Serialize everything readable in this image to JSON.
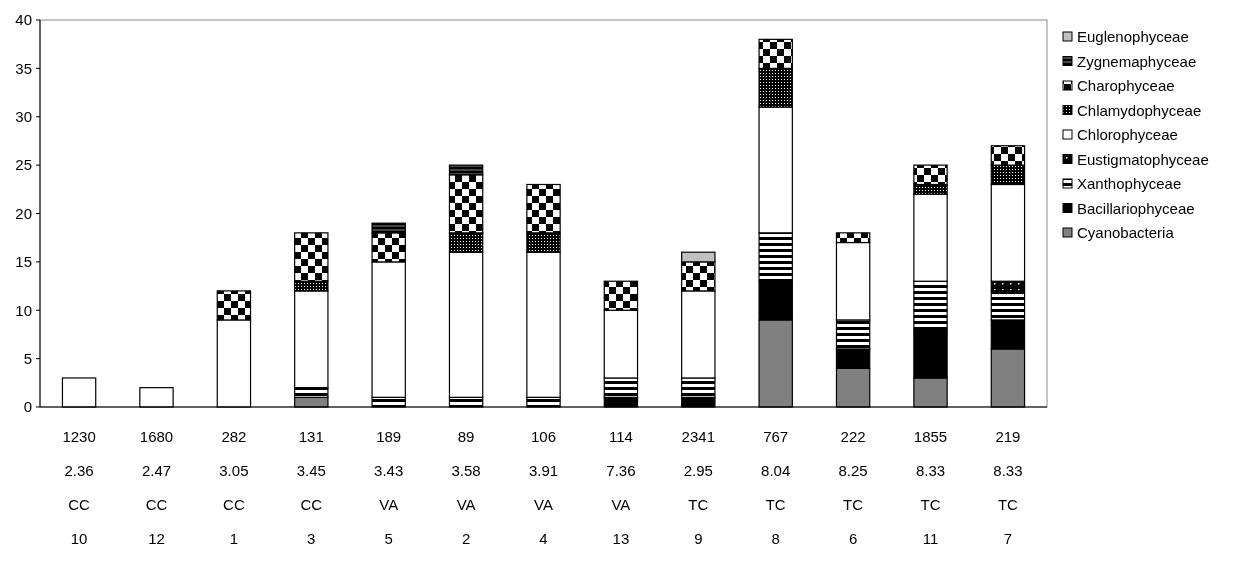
{
  "chart_data": {
    "type": "bar",
    "stacked": true,
    "legend": "right",
    "grid": false,
    "categories": [
      "1230\n2.36\nCC\n10",
      "1680\n2.47\nCC\n12",
      "282\n3.05\nCC\n1",
      "131\n3.45\nCC\n3",
      "189\n3.43\nVA\n5",
      "89\n3.58\nVA\n2",
      "106\n3.91\nVA\n4",
      "114\n7.36\nVA\n13",
      "2341\n2.95\nTC\n9",
      "767\n8.04\nTC\n8",
      "222\n8.25\nTC\n6",
      "1855\n8.33\nTC\n11",
      "219\n8.33\nTC\n7"
    ],
    "ylim": [
      0,
      40
    ],
    "yticks": [
      0,
      5,
      10,
      15,
      20,
      25,
      30,
      35,
      40
    ],
    "series": [
      {
        "name": "Cyanobacteria",
        "color": "#808080",
        "values": [
          0,
          0,
          0,
          1,
          0,
          0,
          0,
          0,
          0,
          9,
          4,
          3,
          6
        ]
      },
      {
        "name": "Bacillariophyceae",
        "color": "#000000",
        "values": [
          0,
          0,
          0,
          0,
          0,
          0,
          0,
          1,
          1,
          4,
          2,
          5,
          3
        ]
      },
      {
        "name": "Xanthophyceae",
        "color": "#000000",
        "values": [
          0,
          0,
          0,
          1,
          1,
          1,
          1,
          2,
          2,
          5,
          3,
          5,
          3
        ]
      },
      {
        "name": "Eustigmatophyceae",
        "color": "#000000",
        "values": [
          0,
          0,
          0,
          0,
          0,
          0,
          0,
          0,
          0,
          0,
          0,
          0,
          1
        ]
      },
      {
        "name": "Chlorophyceae",
        "color": "#ffffff",
        "values": [
          3,
          2,
          9,
          10,
          14,
          15,
          15,
          7,
          9,
          13,
          8,
          9,
          10
        ]
      },
      {
        "name": "Chlamydophyceae",
        "color": "#000000",
        "values": [
          0,
          0,
          0,
          1,
          0,
          2,
          2,
          0,
          0,
          4,
          0,
          1,
          2
        ]
      },
      {
        "name": "Charophyceae",
        "color": "#000000",
        "values": [
          0,
          0,
          3,
          5,
          3,
          6,
          5,
          3,
          3,
          3,
          1,
          2,
          2
        ]
      },
      {
        "name": "Zygnemaphyceae",
        "color": "#000000",
        "values": [
          0,
          0,
          0,
          0,
          1,
          1,
          0,
          0,
          0,
          0,
          0,
          0,
          0
        ]
      },
      {
        "name": "Euglenophyceae",
        "color": "#c0c0c0",
        "values": [
          0,
          0,
          0,
          0,
          0,
          0,
          0,
          0,
          1,
          0,
          0,
          0,
          0
        ]
      }
    ]
  }
}
